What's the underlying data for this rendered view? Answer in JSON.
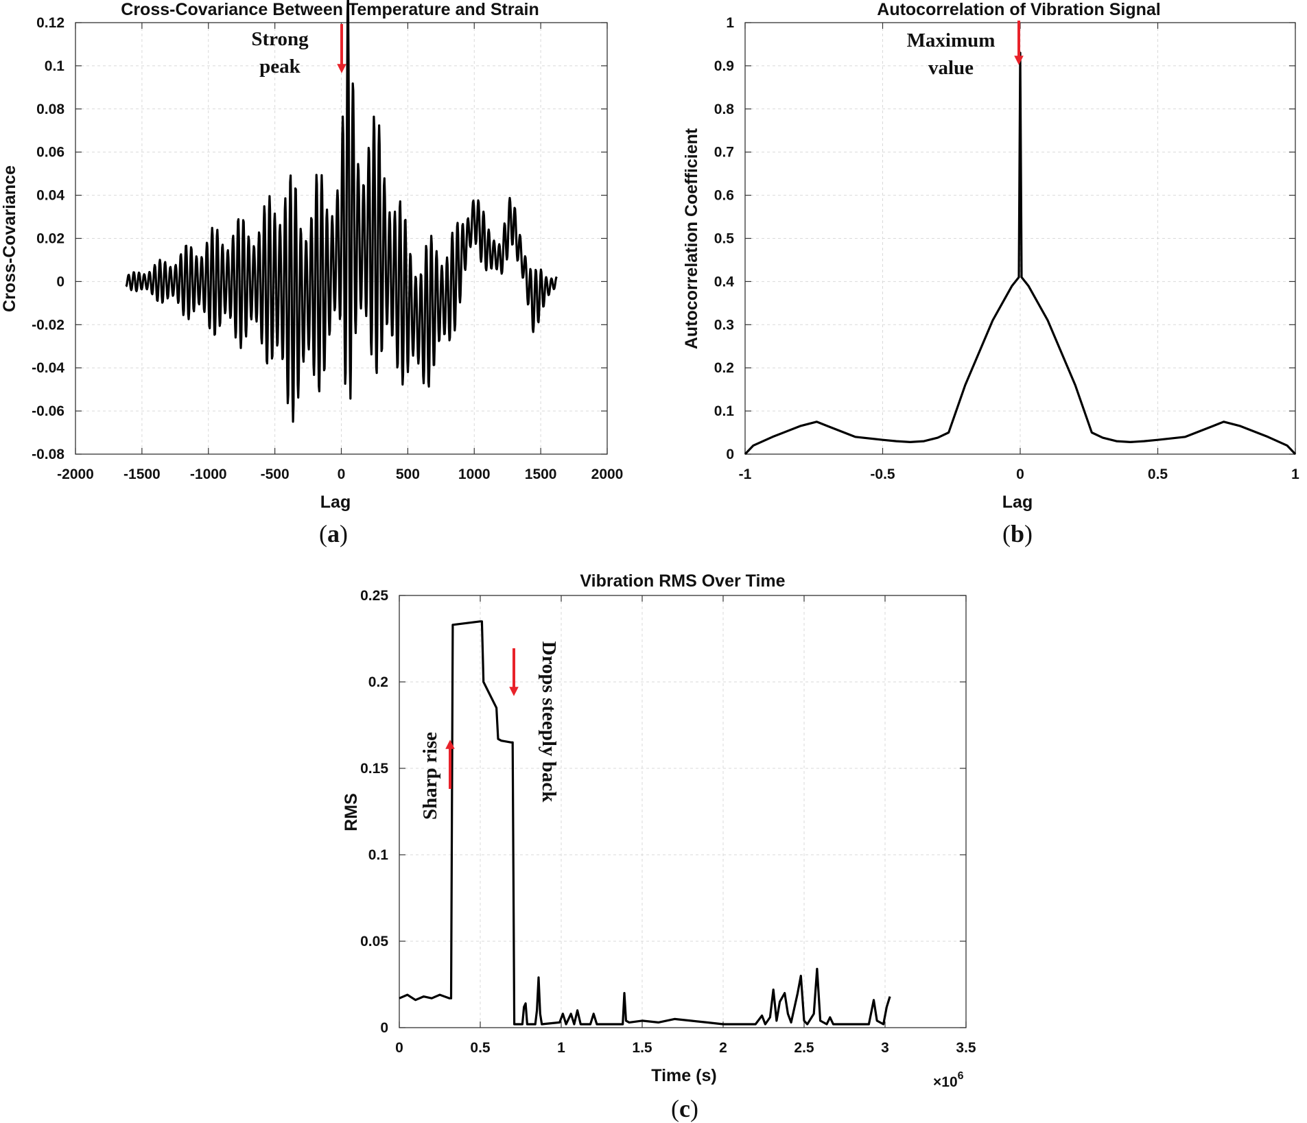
{
  "chart_data": [
    {
      "id": "a",
      "type": "line",
      "panel_label": "a",
      "title": "Cross-Covariance Between Temperature and Strain",
      "xlabel": "Lag",
      "ylabel": "Cross-Covariance",
      "xlim": [
        -2000,
        2000
      ],
      "ylim": [
        -0.08,
        0.12
      ],
      "xticks": [
        -2000,
        -1500,
        -1000,
        -500,
        0,
        500,
        1000,
        1500,
        2000
      ],
      "xtick_labels": [
        "-2000",
        "-1500",
        "-1000",
        "-500",
        "0",
        "500",
        "1000",
        "1500",
        "2000"
      ],
      "yticks": [
        -0.08,
        -0.06,
        -0.04,
        -0.02,
        0,
        0.02,
        0.04,
        0.06,
        0.08,
        0.1,
        0.12
      ],
      "ytick_labels": [
        "-0.08",
        "-0.06",
        "-0.04",
        "-0.02",
        "0",
        "0.02",
        "0.04",
        "0.06",
        "0.08",
        "0.1",
        "0.12"
      ],
      "grid": true,
      "series": [
        {
          "name": "cross-covariance",
          "x": [
            -1620,
            -1500,
            -1400,
            -1300,
            -1200,
            -1100,
            -1000,
            -900,
            -800,
            -700,
            -600,
            -500,
            -420,
            -300,
            -200,
            -100,
            0,
            50,
            100,
            150,
            200,
            300,
            400,
            500,
            600,
            700,
            800,
            900,
            1000,
            1100,
            1200,
            1280,
            1400,
            1440,
            1500,
            1620
          ],
          "amp": [
            0.003,
            0.006,
            0.009,
            0.012,
            0.016,
            0.02,
            0.024,
            0.028,
            0.03,
            0.032,
            0.035,
            0.045,
            0.07,
            0.045,
            0.06,
            0.04,
            0.055,
            0.1,
            0.07,
            0.055,
            0.055,
            0.065,
            0.045,
            0.04,
            0.035,
            0.035,
            0.03,
            0.02,
            0.015,
            0.012,
            0.012,
            0.012,
            0.015,
            0.015,
            0.012,
            0.003
          ],
          "mid": [
            0,
            0,
            0,
            0,
            0,
            0,
            0,
            0,
            0,
            0,
            0,
            0,
            -0.005,
            -0.01,
            0,
            0,
            0.02,
            0.035,
            0.025,
            0.015,
            0.02,
            0.015,
            0,
            -0.01,
            -0.02,
            -0.01,
            -0.008,
            0.01,
            0.03,
            0.015,
            0.01,
            0.03,
            0,
            -0.01,
            -0.005,
            0
          ]
        }
      ],
      "annotations": [
        {
          "text_lines": [
            "Strong",
            "peak"
          ],
          "x": 50,
          "y": 0.1
        }
      ]
    },
    {
      "id": "b",
      "type": "line",
      "panel_label": "b",
      "title": "Autocorrelation of Vibration Signal",
      "xlabel": "Lag",
      "ylabel": "Autocorrelation Coefficient",
      "xlim": [
        -1,
        1
      ],
      "ylim": [
        0,
        1
      ],
      "xticks": [
        -1,
        -0.5,
        0,
        0.5,
        1
      ],
      "xtick_labels": [
        "-1",
        "-0.5",
        "0",
        "0.5",
        "1"
      ],
      "yticks": [
        0,
        0.1,
        0.2,
        0.3,
        0.4,
        0.5,
        0.6,
        0.7,
        0.8,
        0.9,
        1
      ],
      "ytick_labels": [
        "0",
        "0.1",
        "0.2",
        "0.3",
        "0.4",
        "0.5",
        "0.6",
        "0.7",
        "0.8",
        "0.9",
        "1"
      ],
      "grid": true,
      "series": [
        {
          "name": "autocorrelation",
          "x": [
            -1,
            -0.97,
            -0.9,
            -0.8,
            -0.74,
            -0.7,
            -0.6,
            -0.5,
            -0.45,
            -0.4,
            -0.35,
            -0.3,
            -0.26,
            -0.2,
            -0.1,
            -0.03,
            -0.005,
            0,
            0.005,
            0.03,
            0.1,
            0.2,
            0.26,
            0.3,
            0.35,
            0.4,
            0.45,
            0.5,
            0.6,
            0.7,
            0.74,
            0.8,
            0.9,
            0.97,
            1
          ],
          "y": [
            0,
            0.02,
            0.04,
            0.065,
            0.075,
            0.065,
            0.04,
            0.033,
            0.03,
            0.028,
            0.03,
            0.038,
            0.05,
            0.16,
            0.31,
            0.39,
            0.41,
            0.93,
            0.41,
            0.39,
            0.31,
            0.16,
            0.05,
            0.038,
            0.03,
            0.028,
            0.03,
            0.033,
            0.04,
            0.065,
            0.075,
            0.065,
            0.04,
            0.02,
            0
          ]
        }
      ],
      "annotations": [
        {
          "text_lines": [
            "Maximum",
            "value"
          ],
          "x": 0,
          "y": 0.93
        }
      ]
    },
    {
      "id": "c",
      "type": "line",
      "panel_label": "c",
      "title": "Vibration RMS Over Time",
      "xlabel": "Time (s)",
      "ylabel": "RMS",
      "x_multiplier": "×10",
      "x_multiplier_exponent": "6",
      "xlim": [
        0,
        3.5
      ],
      "ylim": [
        0,
        0.25
      ],
      "xticks": [
        0,
        0.5,
        1,
        1.5,
        2,
        2.5,
        3,
        3.5
      ],
      "xtick_labels": [
        "0",
        "0.5",
        "1",
        "1.5",
        "2",
        "2.5",
        "3",
        "3.5"
      ],
      "yticks": [
        0,
        0.05,
        0.1,
        0.15,
        0.2,
        0.25
      ],
      "ytick_labels": [
        "0",
        "0.05",
        "0.1",
        "0.15",
        "0.2",
        "0.25"
      ],
      "grid": true,
      "series": [
        {
          "name": "rms",
          "x": [
            0,
            0.05,
            0.1,
            0.15,
            0.2,
            0.25,
            0.31,
            0.32,
            0.33,
            0.5,
            0.51,
            0.52,
            0.6,
            0.61,
            0.63,
            0.69,
            0.7,
            0.71,
            0.76,
            0.77,
            0.78,
            0.79,
            0.84,
            0.85,
            0.86,
            0.87,
            0.88,
            0.99,
            1.01,
            1.03,
            1.06,
            1.08,
            1.1,
            1.12,
            1.18,
            1.2,
            1.22,
            1.38,
            1.39,
            1.4,
            1.42,
            1.5,
            1.6,
            1.7,
            1.8,
            1.9,
            2.0,
            2.2,
            2.24,
            2.26,
            2.29,
            2.31,
            2.33,
            2.35,
            2.38,
            2.4,
            2.42,
            2.46,
            2.48,
            2.5,
            2.52,
            2.56,
            2.58,
            2.6,
            2.64,
            2.66,
            2.68,
            2.9,
            2.93,
            2.95,
            2.99,
            3.01,
            3.03
          ],
          "y": [
            0.017,
            0.019,
            0.016,
            0.018,
            0.017,
            0.019,
            0.017,
            0.017,
            0.233,
            0.235,
            0.235,
            0.2,
            0.185,
            0.167,
            0.166,
            0.165,
            0.165,
            0.002,
            0.002,
            0.012,
            0.014,
            0.002,
            0.002,
            0.01,
            0.029,
            0.008,
            0.002,
            0.003,
            0.008,
            0.002,
            0.008,
            0.002,
            0.01,
            0.002,
            0.002,
            0.008,
            0.002,
            0.002,
            0.02,
            0.004,
            0.003,
            0.004,
            0.003,
            0.005,
            0.004,
            0.003,
            0.002,
            0.002,
            0.007,
            0.002,
            0.006,
            0.022,
            0.004,
            0.015,
            0.02,
            0.008,
            0.003,
            0.02,
            0.03,
            0.004,
            0.002,
            0.008,
            0.034,
            0.004,
            0.002,
            0.006,
            0.002,
            0.002,
            0.016,
            0.004,
            0.002,
            0.012,
            0.018
          ]
        }
      ],
      "annotations": [
        {
          "text": "Sharp rise",
          "x": 0.33,
          "y": 0.14
        },
        {
          "text": "Drops steeply back",
          "x": 0.65,
          "y": 0.2
        }
      ]
    }
  ],
  "colors": {
    "line": "#000000",
    "arrow": "#e8222a",
    "grid": "#d9d9d9",
    "background": "#ffffff"
  }
}
